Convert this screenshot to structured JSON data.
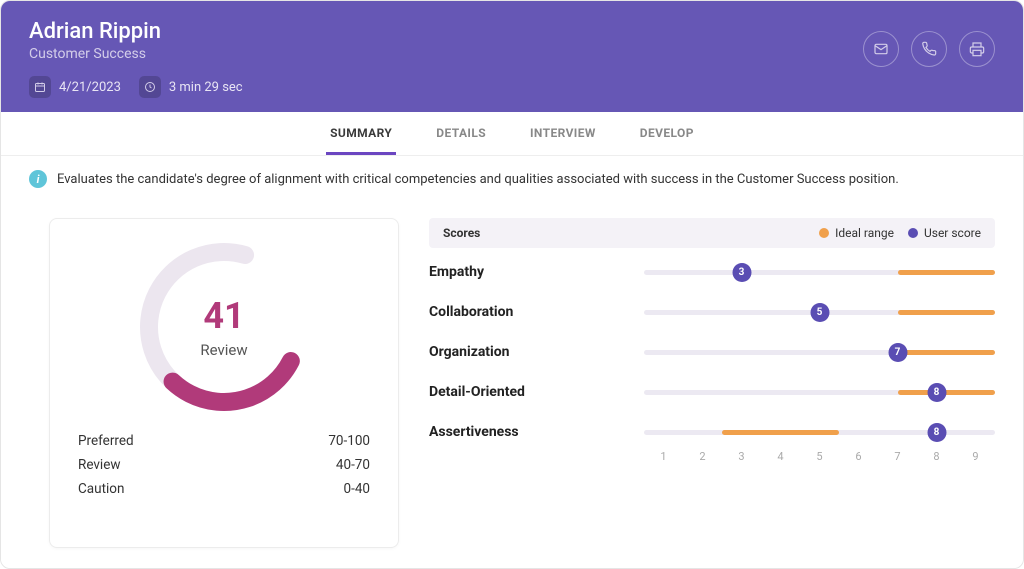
{
  "colors": {
    "header_bg": "#6657b5",
    "accent": "#6b46c1",
    "gauge_bg": "#ece6ef",
    "gauge_fg": "#b13a7a",
    "ideal": "#f0a04b",
    "user_dot": "#5a4db3",
    "track": "#ece9f2",
    "info_icon": "#5fc5d9"
  },
  "header": {
    "name": "Adrian Rippin",
    "role": "Customer Success",
    "date": "4/21/2023",
    "duration": "3 min 29 sec"
  },
  "tabs": [
    {
      "label": "SUMMARY",
      "active": true
    },
    {
      "label": "DETAILS",
      "active": false
    },
    {
      "label": "INTERVIEW",
      "active": false
    },
    {
      "label": "DEVELOP",
      "active": false
    }
  ],
  "info_text": "Evaluates the candidate's degree of alignment with critical competencies and qualities associated with success in the Customer Success position.",
  "gauge": {
    "score": 41,
    "max": 100,
    "label": "Review",
    "legend": [
      {
        "label": "Preferred",
        "range": "70-100"
      },
      {
        "label": "Review",
        "range": "40-70"
      },
      {
        "label": "Caution",
        "range": "0-40"
      }
    ]
  },
  "scores": {
    "title": "Scores",
    "legend_ideal": "Ideal range",
    "legend_user": "User score",
    "scale_min": 1,
    "scale_max": 9,
    "track_start": 0.5,
    "track_end": 9.5,
    "items": [
      {
        "label": "Empathy",
        "user": 3,
        "ideal_low": 7,
        "ideal_high": 9.5
      },
      {
        "label": "Collaboration",
        "user": 5,
        "ideal_low": 7,
        "ideal_high": 9.5
      },
      {
        "label": "Organization",
        "user": 7,
        "ideal_low": 7,
        "ideal_high": 9.5
      },
      {
        "label": "Detail-Oriented",
        "user": 8,
        "ideal_low": 7,
        "ideal_high": 9.5
      },
      {
        "label": "Assertiveness",
        "user": 8,
        "ideal_low": 2.5,
        "ideal_high": 5.5
      }
    ]
  }
}
